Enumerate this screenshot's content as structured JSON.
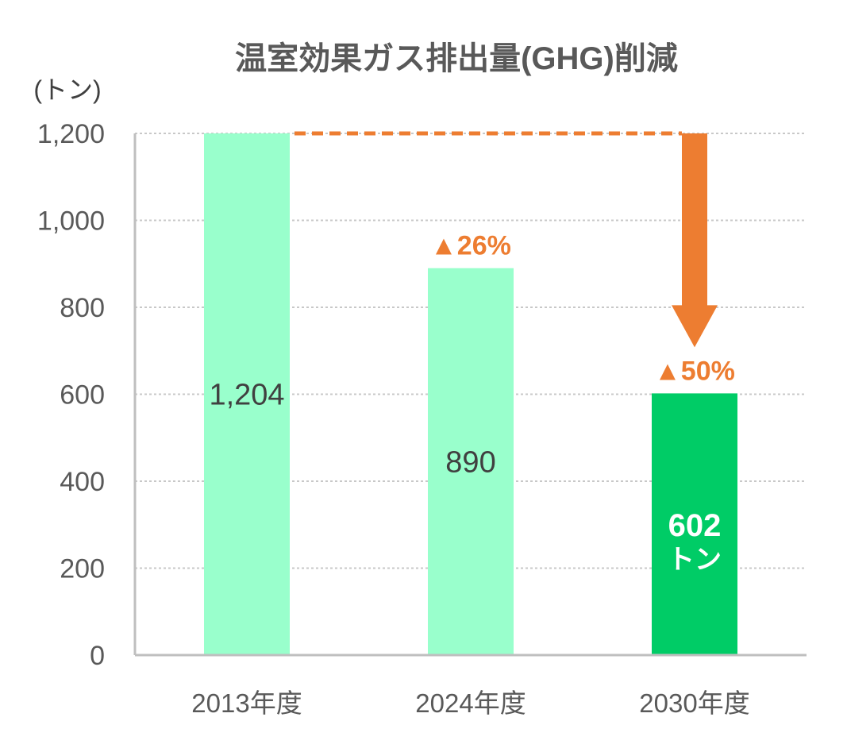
{
  "chart_data": {
    "type": "bar",
    "title": "温室効果ガス排出量(GHG)削減",
    "unit_label": "(トン)",
    "categories": [
      "2013年度",
      "2024年度",
      "2030年度"
    ],
    "values": [
      1204,
      890,
      602
    ],
    "value_labels": [
      "1,204",
      "890",
      "602"
    ],
    "highlight_unit": "トン",
    "ylim": [
      0,
      1200
    ],
    "yticks": [
      0,
      200,
      400,
      600,
      800,
      1000,
      1200
    ],
    "ytick_labels": [
      "0",
      "200",
      "400",
      "600",
      "800",
      "1,000",
      "1,200"
    ],
    "grid": true,
    "annotations": [
      {
        "category": "2024年度",
        "text": "▲26%"
      },
      {
        "category": "2030年度",
        "text": "▲50%"
      }
    ],
    "reduction_arrow": {
      "from": "2013年度",
      "to": "2030年度"
    },
    "colors": {
      "bar": "#99ffcc",
      "bar_highlight": "#00cc66",
      "accent": "#ed7d31",
      "grid": "#c8c8c8",
      "axis": "#bfbfbf"
    }
  }
}
